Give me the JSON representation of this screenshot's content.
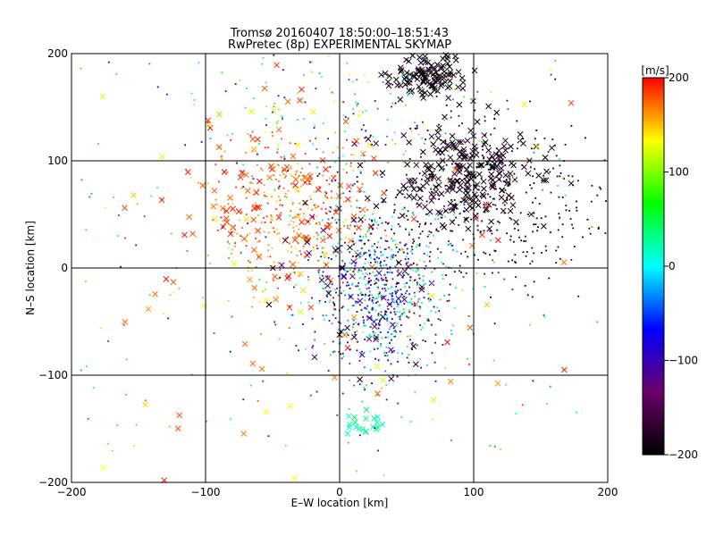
{
  "chart_data": {
    "type": "scatter",
    "title": "Tromsø 20160407 18:50:00–18:51:43",
    "subtitle": "RwPretec (8p) EXPERIMENTAL SKYMAP",
    "xlabel": "E–W location [km]",
    "ylabel": "N–S location [km]",
    "xlim": [
      -200,
      200
    ],
    "ylim": [
      -200,
      200
    ],
    "x_ticks": [
      -200,
      -100,
      0,
      100,
      200
    ],
    "y_ticks": [
      -200,
      -100,
      0,
      100,
      200
    ],
    "x_tick_labels": [
      "−200",
      "−100",
      "0",
      "100",
      "200"
    ],
    "y_tick_labels": [
      "−200",
      "−100",
      "0",
      "100",
      "200"
    ],
    "grid": true,
    "colorbar": {
      "label": "[m/s]",
      "range": [
        -200,
        200
      ],
      "ticks": [
        200,
        100,
        0,
        -100,
        -200
      ],
      "tick_labels": [
        "200",
        "100",
        "0",
        "−100",
        "−200"
      ],
      "colors": [
        "#000000",
        "#6a006a",
        "#0000ff",
        "#00ffff",
        "#00ff00",
        "#ffff00",
        "#ff0000"
      ]
    },
    "series": [
      {
        "marker": "x",
        "clusters": [
          {
            "cx": 65,
            "cy": 180,
            "sx": 14,
            "sy": 12,
            "n": 120,
            "vmean": -190,
            "vspread": 10
          },
          {
            "cx": 95,
            "cy": 85,
            "sx": 28,
            "sy": 22,
            "n": 240,
            "vmean": -185,
            "vspread": 15
          },
          {
            "cx": -40,
            "cy": 60,
            "sx": 40,
            "sy": 40,
            "n": 90,
            "vmean": 185,
            "vspread": 15
          },
          {
            "cx": 10,
            "cy": -20,
            "sx": 30,
            "sy": 40,
            "n": 60,
            "vmean": -150,
            "vspread": 60
          },
          {
            "cx": 20,
            "cy": -145,
            "sx": 10,
            "sy": 6,
            "n": 20,
            "vmean": 20,
            "vspread": 20
          },
          {
            "cx": -30,
            "cy": 0,
            "sx": 110,
            "sy": 110,
            "n": 90,
            "vmean": 160,
            "vspread": 40
          }
        ]
      },
      {
        "marker": "dot",
        "clusters": [
          {
            "cx": 30,
            "cy": -20,
            "sx": 25,
            "sy": 40,
            "n": 700,
            "vmean": -60,
            "vspread": 120
          },
          {
            "cx": -35,
            "cy": 50,
            "sx": 30,
            "sy": 40,
            "n": 350,
            "vmean": 170,
            "vspread": 30
          },
          {
            "cx": 110,
            "cy": 60,
            "sx": 50,
            "sy": 40,
            "n": 350,
            "vmean": -190,
            "vspread": 10
          },
          {
            "cx": 10,
            "cy": 150,
            "sx": 60,
            "sy": 35,
            "n": 150,
            "vmean": 0,
            "vspread": 150
          },
          {
            "cx": 0,
            "cy": 0,
            "sx": 120,
            "sy": 110,
            "n": 300,
            "vmean": 50,
            "vspread": 150
          }
        ]
      }
    ]
  }
}
